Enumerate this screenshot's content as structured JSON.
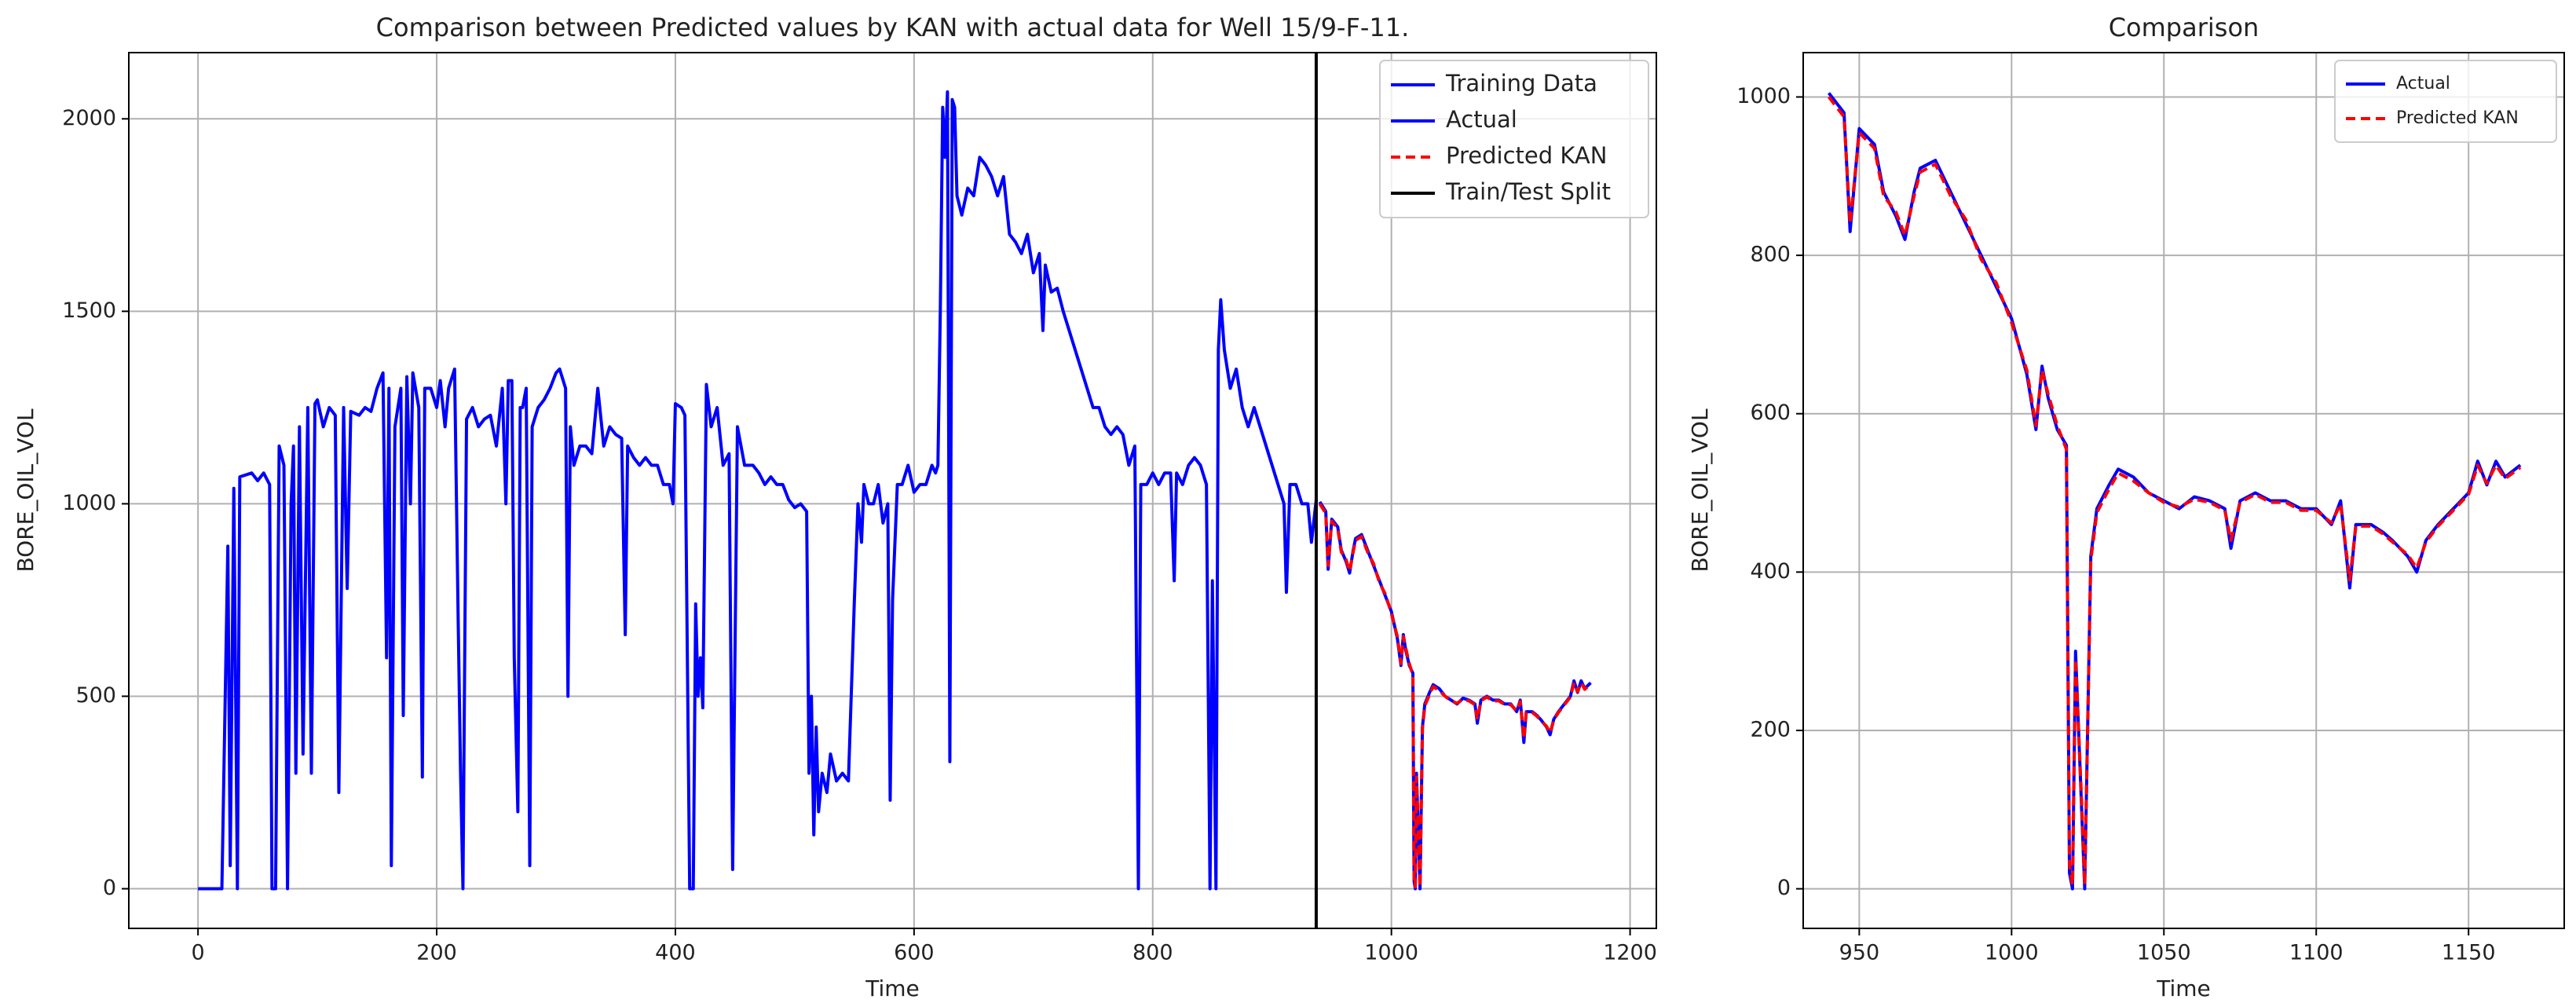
{
  "chart_data": [
    {
      "type": "line",
      "title": "Comparison between Predicted values by KAN with actual data for Well 15/9-F-11.",
      "xlabel": "Time",
      "ylabel": "BORE_OIL_VOL",
      "xlim": [
        -58,
        1222
      ],
      "ylim": [
        -103,
        2172
      ],
      "xticks": [
        0,
        200,
        400,
        600,
        800,
        1000,
        1200
      ],
      "yticks": [
        0,
        500,
        1000,
        1500,
        2000
      ],
      "grid": true,
      "legend": "upper right",
      "series": [
        {
          "name": "Training Data",
          "color": "#0000ff",
          "linestyle": "solid",
          "x": [
            0,
            20,
            25,
            27,
            30,
            33,
            35,
            45,
            50,
            55,
            60,
            62,
            65,
            68,
            72,
            75,
            78,
            80,
            82,
            85,
            88,
            92,
            95,
            98,
            100,
            105,
            110,
            115,
            118,
            122,
            125,
            128,
            135,
            140,
            145,
            150,
            155,
            158,
            160,
            162,
            165,
            170,
            172,
            175,
            178,
            180,
            185,
            188,
            190,
            195,
            200,
            203,
            207,
            210,
            215,
            218,
            220,
            222,
            225,
            230,
            235,
            240,
            245,
            250,
            255,
            258,
            260,
            263,
            265,
            268,
            270,
            272,
            275,
            278,
            280,
            285,
            290,
            295,
            300,
            303,
            308,
            310,
            312,
            315,
            320,
            325,
            330,
            335,
            340,
            345,
            350,
            355,
            358,
            360,
            365,
            370,
            375,
            380,
            385,
            390,
            395,
            398,
            400,
            405,
            408,
            412,
            415,
            417,
            419,
            421,
            423,
            426,
            430,
            435,
            440,
            445,
            448,
            452,
            458,
            465,
            470,
            475,
            480,
            485,
            490,
            495,
            500,
            505,
            510,
            512,
            514,
            516,
            518,
            520,
            523,
            527,
            530,
            535,
            540,
            545,
            550,
            553,
            556,
            558,
            562,
            566,
            570,
            574,
            578,
            580,
            582,
            586,
            590,
            595,
            600,
            605,
            610,
            615,
            618,
            620,
            622,
            624,
            626,
            628,
            630,
            632,
            634,
            636,
            640,
            645,
            650,
            655,
            660,
            665,
            670,
            675,
            680,
            685,
            690,
            695,
            700,
            705,
            708,
            710,
            715,
            720,
            725,
            730,
            735,
            740,
            745,
            750,
            755,
            760,
            765,
            770,
            775,
            780,
            785,
            788,
            790,
            795,
            800,
            805,
            810,
            815,
            818,
            820,
            825,
            830,
            835,
            840,
            845,
            848,
            850,
            853,
            855,
            857,
            860,
            865,
            870,
            875,
            880,
            885,
            890,
            895,
            900,
            905,
            910,
            912,
            915,
            920,
            925,
            930,
            933,
            937
          ],
          "values": [
            0,
            0,
            890,
            60,
            1040,
            0,
            1070,
            1080,
            1060,
            1080,
            1050,
            0,
            0,
            1150,
            1100,
            0,
            1000,
            1150,
            300,
            1200,
            350,
            1250,
            300,
            1260,
            1270,
            1200,
            1250,
            1230,
            250,
            1250,
            780,
            1240,
            1230,
            1250,
            1240,
            1300,
            1340,
            600,
            1300,
            60,
            1200,
            1300,
            450,
            1330,
            1000,
            1340,
            1250,
            290,
            1300,
            1300,
            1250,
            1320,
            1200,
            1300,
            1350,
            700,
            300,
            0,
            1220,
            1250,
            1200,
            1220,
            1230,
            1150,
            1300,
            1000,
            1320,
            1320,
            600,
            200,
            1250,
            1250,
            1300,
            60,
            1200,
            1250,
            1270,
            1300,
            1340,
            1350,
            1300,
            500,
            1200,
            1100,
            1150,
            1150,
            1130,
            1300,
            1150,
            1200,
            1180,
            1170,
            660,
            1150,
            1120,
            1100,
            1120,
            1100,
            1100,
            1050,
            1050,
            1000,
            1260,
            1250,
            1230,
            0,
            0,
            740,
            500,
            600,
            470,
            1310,
            1200,
            1250,
            1100,
            1130,
            50,
            1200,
            1100,
            1100,
            1080,
            1050,
            1070,
            1050,
            1050,
            1010,
            990,
            1000,
            980,
            300,
            500,
            140,
            420,
            200,
            300,
            250,
            350,
            280,
            300,
            280,
            750,
            1000,
            900,
            1050,
            1000,
            1000,
            1050,
            950,
            1000,
            230,
            750,
            1050,
            1050,
            1100,
            1030,
            1050,
            1050,
            1100,
            1080,
            1100,
            1500,
            2030,
            1900,
            2070,
            330,
            2050,
            2030,
            1800,
            1750,
            1820,
            1800,
            1900,
            1880,
            1850,
            1800,
            1850,
            1700,
            1680,
            1650,
            1700,
            1600,
            1650,
            1450,
            1620,
            1550,
            1560,
            1500,
            1450,
            1400,
            1350,
            1300,
            1250,
            1250,
            1200,
            1180,
            1200,
            1180,
            1100,
            1150,
            0,
            1050,
            1050,
            1080,
            1050,
            1080,
            1080,
            800,
            1080,
            1050,
            1100,
            1120,
            1100,
            1050,
            0,
            800,
            0,
            1400,
            1530,
            1400,
            1300,
            1350,
            1250,
            1200,
            1250,
            1200,
            1150,
            1100,
            1050,
            1000,
            770,
            1050,
            1050,
            1000,
            1000,
            900,
            1010
          ]
        },
        {
          "name": "Actual",
          "color": "#0000ff",
          "linestyle": "solid",
          "x": [
            940,
            945,
            947,
            950,
            955,
            958,
            962,
            965,
            968,
            970,
            975,
            980,
            985,
            990,
            995,
            1000,
            1005,
            1008,
            1010,
            1012,
            1015,
            1018,
            1019,
            1020,
            1021,
            1023,
            1024,
            1026,
            1028,
            1032,
            1035,
            1040,
            1045,
            1050,
            1055,
            1060,
            1065,
            1070,
            1072,
            1075,
            1080,
            1085,
            1090,
            1095,
            1100,
            1105,
            1108,
            1111,
            1113,
            1118,
            1122,
            1125,
            1130,
            1133,
            1136,
            1140,
            1145,
            1150,
            1153,
            1156,
            1159,
            1162,
            1167
          ],
          "values": [
            1005,
            980,
            830,
            960,
            940,
            880,
            850,
            820,
            880,
            910,
            920,
            880,
            840,
            800,
            760,
            720,
            650,
            580,
            660,
            620,
            580,
            560,
            20,
            0,
            300,
            100,
            0,
            420,
            480,
            510,
            530,
            520,
            500,
            490,
            480,
            495,
            490,
            480,
            430,
            490,
            500,
            490,
            490,
            480,
            480,
            460,
            490,
            380,
            460,
            460,
            450,
            440,
            420,
            400,
            440,
            460,
            480,
            500,
            540,
            510,
            540,
            520,
            535
          ]
        },
        {
          "name": "Predicted KAN",
          "color": "#ff0000",
          "linestyle": "dashed",
          "x": [
            940,
            945,
            947,
            950,
            955,
            958,
            962,
            965,
            968,
            970,
            975,
            980,
            985,
            990,
            995,
            1000,
            1005,
            1008,
            1010,
            1012,
            1015,
            1018,
            1019,
            1020,
            1021,
            1023,
            1024,
            1026,
            1028,
            1032,
            1035,
            1040,
            1045,
            1050,
            1055,
            1060,
            1065,
            1070,
            1072,
            1075,
            1080,
            1085,
            1090,
            1095,
            1100,
            1105,
            1108,
            1111,
            1113,
            1118,
            1122,
            1125,
            1130,
            1133,
            1136,
            1140,
            1145,
            1150,
            1153,
            1156,
            1159,
            1162,
            1167
          ],
          "values": [
            1000,
            975,
            840,
            955,
            935,
            875,
            855,
            825,
            875,
            905,
            915,
            875,
            845,
            795,
            765,
            715,
            655,
            585,
            655,
            625,
            585,
            555,
            30,
            5,
            290,
            110,
            5,
            415,
            475,
            505,
            525,
            515,
            500,
            488,
            482,
            492,
            488,
            478,
            440,
            488,
            498,
            488,
            488,
            478,
            478,
            462,
            486,
            390,
            458,
            458,
            448,
            438,
            422,
            405,
            438,
            458,
            478,
            498,
            535,
            512,
            535,
            518,
            532
          ]
        }
      ],
      "vline": {
        "name": "Train/Test Split",
        "color": "#000000",
        "x": 937
      }
    },
    {
      "type": "line",
      "title": "Comparison",
      "xlabel": "Time",
      "ylabel": "BORE_OIL_VOL",
      "xlim": [
        931.6,
        1181.4
      ],
      "ylim": [
        -50,
        1056
      ],
      "xticks": [
        950,
        1000,
        1050,
        1100,
        1150
      ],
      "yticks": [
        0,
        200,
        400,
        600,
        800,
        1000
      ],
      "grid": true,
      "legend": "upper right",
      "series": [
        {
          "name": "Actual",
          "color": "#0000ff",
          "linestyle": "solid",
          "x": [
            940,
            945,
            947,
            950,
            955,
            958,
            962,
            965,
            968,
            970,
            975,
            980,
            985,
            990,
            995,
            1000,
            1005,
            1008,
            1010,
            1012,
            1015,
            1018,
            1019,
            1020,
            1021,
            1023,
            1024,
            1026,
            1028,
            1032,
            1035,
            1040,
            1045,
            1050,
            1055,
            1060,
            1065,
            1070,
            1072,
            1075,
            1080,
            1085,
            1090,
            1095,
            1100,
            1105,
            1108,
            1111,
            1113,
            1118,
            1122,
            1125,
            1130,
            1133,
            1136,
            1140,
            1145,
            1150,
            1153,
            1156,
            1159,
            1162,
            1167
          ],
          "values": [
            1005,
            980,
            830,
            960,
            940,
            880,
            850,
            820,
            880,
            910,
            920,
            880,
            840,
            800,
            760,
            720,
            650,
            580,
            660,
            620,
            580,
            560,
            20,
            0,
            300,
            100,
            0,
            420,
            480,
            510,
            530,
            520,
            500,
            490,
            480,
            495,
            490,
            480,
            430,
            490,
            500,
            490,
            490,
            480,
            480,
            460,
            490,
            380,
            460,
            460,
            450,
            440,
            420,
            400,
            440,
            460,
            480,
            500,
            540,
            510,
            540,
            520,
            535
          ]
        },
        {
          "name": "Predicted KAN",
          "color": "#ff0000",
          "linestyle": "dashed",
          "x": [
            940,
            945,
            947,
            950,
            955,
            958,
            962,
            965,
            968,
            970,
            975,
            980,
            985,
            990,
            995,
            1000,
            1005,
            1008,
            1010,
            1012,
            1015,
            1018,
            1019,
            1020,
            1021,
            1023,
            1024,
            1026,
            1028,
            1032,
            1035,
            1040,
            1045,
            1050,
            1055,
            1060,
            1065,
            1070,
            1072,
            1075,
            1080,
            1085,
            1090,
            1095,
            1100,
            1105,
            1108,
            1111,
            1113,
            1118,
            1122,
            1125,
            1130,
            1133,
            1136,
            1140,
            1145,
            1150,
            1153,
            1156,
            1159,
            1162,
            1167
          ],
          "values": [
            1000,
            975,
            840,
            955,
            935,
            875,
            855,
            825,
            875,
            905,
            915,
            875,
            845,
            795,
            765,
            715,
            655,
            585,
            655,
            625,
            585,
            555,
            30,
            5,
            290,
            110,
            5,
            415,
            475,
            505,
            525,
            515,
            500,
            488,
            482,
            492,
            488,
            478,
            440,
            488,
            498,
            488,
            488,
            478,
            478,
            462,
            486,
            390,
            458,
            458,
            448,
            438,
            422,
            405,
            438,
            458,
            478,
            498,
            535,
            512,
            535,
            518,
            532
          ]
        }
      ]
    }
  ]
}
